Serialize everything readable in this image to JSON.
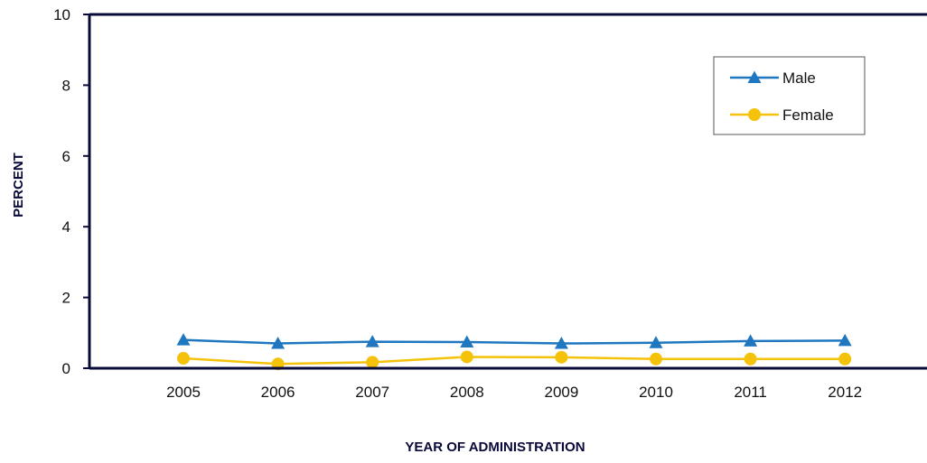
{
  "chart_data": {
    "type": "line",
    "xlabel": "YEAR OF ADMINISTRATION",
    "ylabel": "PERCENT",
    "categories": [
      "2005",
      "2006",
      "2007",
      "2008",
      "2009",
      "2010",
      "2011",
      "2012"
    ],
    "ylim": [
      0,
      10
    ],
    "yticks": [
      "0",
      "2",
      "4",
      "6",
      "8",
      "10"
    ],
    "grid": false,
    "legend_position": "top-right",
    "series": [
      {
        "name": "Male",
        "color": "#1f77c0",
        "marker": "triangle",
        "values": [
          0.8,
          0.7,
          0.75,
          0.74,
          0.7,
          0.72,
          0.77,
          0.78
        ]
      },
      {
        "name": "Female",
        "color": "#f5c20a",
        "marker": "circle",
        "values": [
          0.28,
          0.12,
          0.17,
          0.32,
          0.31,
          0.26,
          0.26,
          0.26
        ]
      }
    ]
  }
}
